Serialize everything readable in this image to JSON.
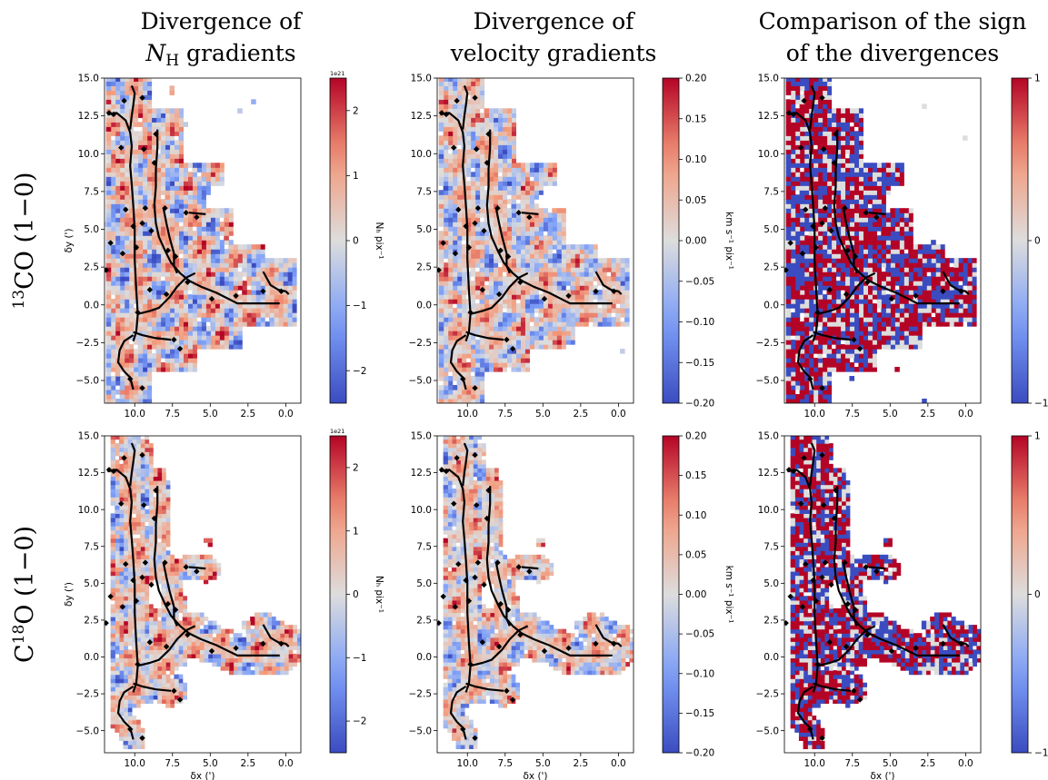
{
  "figure": {
    "column_titles": [
      [
        "Divergence of",
        "N_H gradients"
      ],
      [
        "Divergence of",
        "velocity gradients"
      ],
      [
        "Comparison of the sign",
        "of the divergences"
      ]
    ],
    "row_titles": [
      "13CO (1−0)",
      "C18O (1−0)"
    ]
  },
  "colors": {
    "cmap": "coolwarm",
    "low": "#3b4cc0",
    "mid": "#dddddd",
    "high": "#b40426",
    "filament": "#000000"
  },
  "chart_data": [
    {
      "type": "heatmap",
      "panel": "13CO-NH-divergence",
      "row": 0,
      "col": 0,
      "xlabel": "",
      "ylabel": "δy (')",
      "xlim": [
        12.0,
        -1.0
      ],
      "ylim": [
        -6.5,
        15.0
      ],
      "xticks": [
        "10.0",
        "7.5",
        "5.0",
        "2.5",
        "0.0"
      ],
      "yticks": [
        "15.0",
        "12.5",
        "10.0",
        "7.5",
        "5.0",
        "2.5",
        "0.0",
        "−2.5",
        "−5.0"
      ],
      "colorbar": {
        "label": "N_H pix⁻¹",
        "range": [
          -2.5e+21,
          2.5e+21
        ],
        "ticks": [
          "2",
          "1",
          "0",
          "−1",
          "−2"
        ],
        "offset": "1e21"
      }
    },
    {
      "type": "heatmap",
      "panel": "13CO-velocity-divergence",
      "row": 0,
      "col": 1,
      "xlabel": "",
      "ylabel": "",
      "xlim": [
        12.0,
        -1.0
      ],
      "ylim": [
        -6.5,
        15.0
      ],
      "xticks": [
        "10.0",
        "7.5",
        "5.0",
        "2.5",
        "0.0"
      ],
      "yticks": [
        "15.0",
        "12.5",
        "10.0",
        "7.5",
        "5.0",
        "2.5",
        "0.0",
        "−2.5",
        "−5.0"
      ],
      "colorbar": {
        "label": "km s⁻¹ pix⁻¹",
        "range": [
          -0.2,
          0.2
        ],
        "ticks": [
          "0.20",
          "0.15",
          "0.10",
          "0.05",
          "0.00",
          "−0.05",
          "−0.10",
          "−0.15",
          "−0.20"
        ]
      }
    },
    {
      "type": "heatmap",
      "panel": "13CO-sign-comparison",
      "row": 0,
      "col": 2,
      "xlabel": "",
      "ylabel": "",
      "xlim": [
        12.0,
        -1.0
      ],
      "ylim": [
        -6.5,
        15.0
      ],
      "xticks": [
        "10.0",
        "7.5",
        "5.0",
        "2.5",
        "0.0"
      ],
      "yticks": [
        "15.0",
        "12.5",
        "10.0",
        "7.5",
        "5.0",
        "2.5",
        "0.0",
        "−2.5",
        "−5.0"
      ],
      "colorbar": {
        "label": "",
        "range": [
          -1,
          1
        ],
        "ticks": [
          "1",
          "0",
          "−1"
        ]
      }
    },
    {
      "type": "heatmap",
      "panel": "C18O-NH-divergence",
      "row": 1,
      "col": 0,
      "xlabel": "δx (')",
      "ylabel": "δy (')",
      "xlim": [
        12.0,
        -1.0
      ],
      "ylim": [
        -6.5,
        15.0
      ],
      "xticks": [
        "10.0",
        "7.5",
        "5.0",
        "2.5",
        "0.0"
      ],
      "yticks": [
        "15.0",
        "12.5",
        "10.0",
        "7.5",
        "5.0",
        "2.5",
        "0.0",
        "−2.5",
        "−5.0"
      ],
      "colorbar": {
        "label": "N_H pix⁻¹",
        "range": [
          -2.5e+21,
          2.5e+21
        ],
        "ticks": [
          "2",
          "1",
          "0",
          "−1",
          "−2"
        ],
        "offset": "1e21"
      }
    },
    {
      "type": "heatmap",
      "panel": "C18O-velocity-divergence",
      "row": 1,
      "col": 1,
      "xlabel": "δx (')",
      "ylabel": "",
      "xlim": [
        12.0,
        -1.0
      ],
      "ylim": [
        -6.5,
        15.0
      ],
      "xticks": [
        "10.0",
        "7.5",
        "5.0",
        "2.5",
        "0.0"
      ],
      "yticks": [
        "15.0",
        "12.5",
        "10.0",
        "7.5",
        "5.0",
        "2.5",
        "0.0",
        "−2.5",
        "−5.0"
      ],
      "colorbar": {
        "label": "km s⁻¹ pix⁻¹",
        "range": [
          -0.2,
          0.2
        ],
        "ticks": [
          "0.20",
          "0.15",
          "0.10",
          "0.05",
          "0.00",
          "−0.05",
          "−0.10",
          "−0.15",
          "−0.20"
        ]
      }
    },
    {
      "type": "heatmap",
      "panel": "C18O-sign-comparison",
      "row": 1,
      "col": 2,
      "xlabel": "δx (')",
      "ylabel": "",
      "xlim": [
        12.0,
        -1.0
      ],
      "ylim": [
        -6.5,
        15.0
      ],
      "xticks": [
        "10.0",
        "7.5",
        "5.0",
        "2.5",
        "0.0"
      ],
      "yticks": [
        "15.0",
        "12.5",
        "10.0",
        "7.5",
        "5.0",
        "2.5",
        "0.0",
        "−2.5",
        "−5.0"
      ],
      "colorbar": {
        "label": "",
        "range": [
          -1,
          1
        ],
        "ticks": [
          "1",
          "0",
          "−1"
        ]
      }
    }
  ],
  "filament_skeleton": [
    [
      [
        11.8,
        12.6
      ],
      [
        11.2,
        12.7
      ],
      [
        10.6,
        12.2
      ],
      [
        10.3,
        11.4
      ],
      [
        10.2,
        10.5
      ],
      [
        10.3,
        9.2
      ],
      [
        10.2,
        8.0
      ],
      [
        10.1,
        6.6
      ],
      [
        10.0,
        5.0
      ],
      [
        10.0,
        3.0
      ],
      [
        9.9,
        1.0
      ],
      [
        9.8,
        -0.6
      ],
      [
        9.9,
        -1.8
      ],
      [
        10.1,
        -2.4
      ]
    ],
    [
      [
        10.2,
        14.5
      ],
      [
        10.0,
        14.0
      ],
      [
        10.1,
        13.2
      ],
      [
        10.2,
        12.5
      ],
      [
        10.3,
        11.6
      ]
    ],
    [
      [
        8.5,
        11.6
      ],
      [
        8.5,
        10.4
      ],
      [
        8.6,
        9.0
      ],
      [
        8.6,
        7.8
      ],
      [
        8.7,
        6.6
      ],
      [
        8.6,
        5.4
      ],
      [
        8.4,
        4.5
      ],
      [
        8.0,
        3.6
      ],
      [
        7.6,
        2.8
      ],
      [
        7.0,
        2.1
      ],
      [
        6.4,
        1.6
      ],
      [
        5.6,
        1.2
      ],
      [
        4.6,
        0.8
      ],
      [
        3.6,
        0.3
      ],
      [
        3.2,
        0.1
      ],
      [
        2.4,
        0.1
      ],
      [
        0.4,
        0.1
      ]
    ],
    [
      [
        8.1,
        6.4
      ],
      [
        7.9,
        5.4
      ],
      [
        7.7,
        4.5
      ],
      [
        7.4,
        3.4
      ],
      [
        7.4,
        2.6
      ],
      [
        7.2,
        2.1
      ]
    ],
    [
      [
        6.4,
        6.1
      ],
      [
        5.3,
        6.0
      ]
    ],
    [
      [
        9.8,
        -0.6
      ],
      [
        9.0,
        -0.4
      ],
      [
        8.4,
        -0.2
      ],
      [
        7.7,
        0.5
      ],
      [
        7.2,
        1.2
      ],
      [
        6.6,
        1.8
      ],
      [
        6.0,
        2.1
      ]
    ],
    [
      [
        10.1,
        -1.8
      ],
      [
        9.5,
        -2.0
      ],
      [
        8.6,
        -2.2
      ],
      [
        7.6,
        -2.3
      ]
    ],
    [
      [
        10.1,
        -2.0
      ],
      [
        10.7,
        -2.4
      ],
      [
        11.0,
        -3.0
      ],
      [
        11.1,
        -3.8
      ],
      [
        10.7,
        -4.4
      ],
      [
        10.3,
        -4.8
      ],
      [
        10.1,
        -5.6
      ]
    ],
    [
      [
        1.5,
        2.2
      ],
      [
        1.0,
        1.3
      ],
      [
        0.5,
        1.0
      ],
      [
        0.0,
        0.9
      ],
      [
        -0.2,
        0.7
      ]
    ]
  ],
  "filament_markers": [
    [
      11.7,
      12.7
    ],
    [
      11.4,
      12.6
    ],
    [
      10.9,
      10.4
    ],
    [
      10.7,
      13.5
    ],
    [
      9.5,
      13.7
    ],
    [
      9.4,
      10.3
    ],
    [
      8.7,
      9.4
    ],
    [
      8.6,
      11.3
    ],
    [
      11.9,
      2.3
    ],
    [
      11.6,
      4.1
    ],
    [
      10.6,
      6.3
    ],
    [
      10.8,
      3.4
    ],
    [
      9.9,
      3.8
    ],
    [
      9.5,
      5.4
    ],
    [
      9.3,
      6.4
    ],
    [
      8.9,
      4.9
    ],
    [
      8.0,
      6.4
    ],
    [
      7.8,
      3.6
    ],
    [
      7.3,
      3.2
    ],
    [
      6.6,
      6.1
    ],
    [
      5.9,
      5.8
    ],
    [
      7.9,
      0.7
    ],
    [
      6.5,
      1.5
    ],
    [
      7.4,
      -2.3
    ],
    [
      7.0,
      -2.9
    ],
    [
      10.1,
      5.2
    ],
    [
      9.8,
      -0.5
    ],
    [
      3.3,
      0.6
    ],
    [
      1.5,
      0.9
    ],
    [
      0.3,
      0.9
    ],
    [
      4.9,
      0.4
    ],
    [
      9.5,
      -5.5
    ],
    [
      10.3,
      -4.9
    ],
    [
      9.0,
      1.0
    ]
  ]
}
